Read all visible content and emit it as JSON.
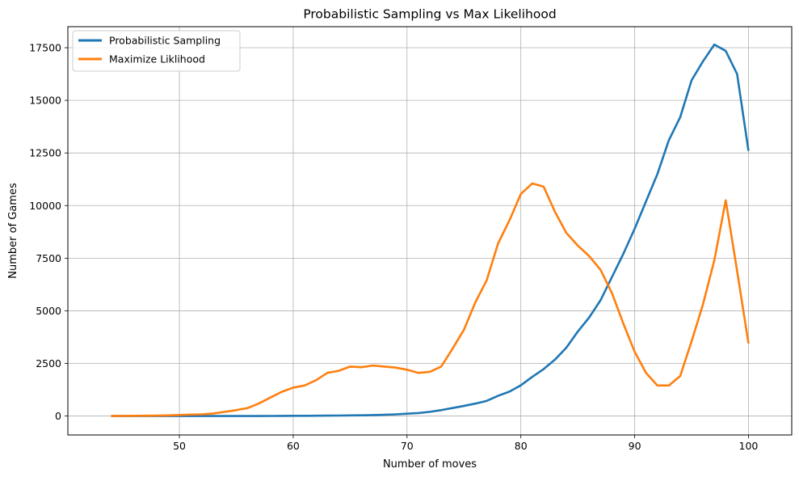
{
  "chart_data": {
    "type": "line",
    "title": "Probabilistic Sampling vs Max Likelihood",
    "xlabel": "Number of moves",
    "ylabel": "Number of Games",
    "xlim": [
      40.2,
      103.8
    ],
    "ylim": [
      -900,
      18500
    ],
    "xticks": [
      50,
      60,
      70,
      80,
      90,
      100
    ],
    "yticks": [
      0,
      2500,
      5000,
      7500,
      10000,
      12500,
      15000,
      17500
    ],
    "grid": true,
    "legend": "top-left",
    "series": [
      {
        "name": "Probabilistic Sampling",
        "color": "#1f77b4",
        "x": [
          44,
          45,
          46,
          47,
          48,
          49,
          50,
          51,
          52,
          53,
          54,
          55,
          56,
          57,
          58,
          59,
          60,
          61,
          62,
          63,
          64,
          65,
          66,
          67,
          68,
          69,
          70,
          71,
          72,
          73,
          74,
          75,
          76,
          77,
          78,
          79,
          80,
          81,
          82,
          83,
          84,
          85,
          86,
          87,
          88,
          89,
          90,
          91,
          92,
          93,
          94,
          95,
          96,
          97,
          98,
          99,
          100
        ],
        "y": [
          0,
          0,
          0,
          0,
          0,
          0,
          0,
          0,
          0,
          0,
          0,
          0,
          0,
          0,
          3,
          5,
          8,
          10,
          14,
          18,
          22,
          28,
          35,
          45,
          60,
          80,
          110,
          140,
          200,
          280,
          380,
          480,
          590,
          720,
          960,
          1160,
          1460,
          1860,
          2230,
          2680,
          3250,
          4010,
          4680,
          5500,
          6600,
          7700,
          8900,
          10200,
          11500,
          13100,
          14200,
          15950,
          16850,
          17650,
          17350,
          16250,
          12600
        ]
      },
      {
        "name": "Maximize Liklihood",
        "color": "#ff7f0e",
        "x": [
          44,
          45,
          46,
          47,
          48,
          49,
          50,
          51,
          52,
          53,
          54,
          55,
          56,
          57,
          58,
          59,
          60,
          61,
          62,
          63,
          64,
          65,
          66,
          67,
          68,
          69,
          70,
          71,
          72,
          73,
          74,
          75,
          76,
          77,
          78,
          79,
          80,
          81,
          82,
          83,
          84,
          85,
          86,
          87,
          88,
          89,
          90,
          91,
          92,
          93,
          94,
          95,
          96,
          97,
          98,
          99,
          100
        ],
        "y": [
          0,
          5,
          10,
          15,
          20,
          30,
          50,
          70,
          80,
          120,
          200,
          280,
          380,
          600,
          880,
          1150,
          1350,
          1450,
          1700,
          2050,
          2150,
          2350,
          2320,
          2400,
          2350,
          2300,
          2200,
          2050,
          2100,
          2350,
          3200,
          4100,
          5400,
          6450,
          8200,
          9300,
          10550,
          11050,
          10900,
          9700,
          8700,
          8100,
          7600,
          6950,
          5850,
          4400,
          3050,
          2050,
          1450,
          1450,
          1900,
          3550,
          5300,
          7400,
          10250,
          6900,
          3450
        ]
      }
    ]
  }
}
